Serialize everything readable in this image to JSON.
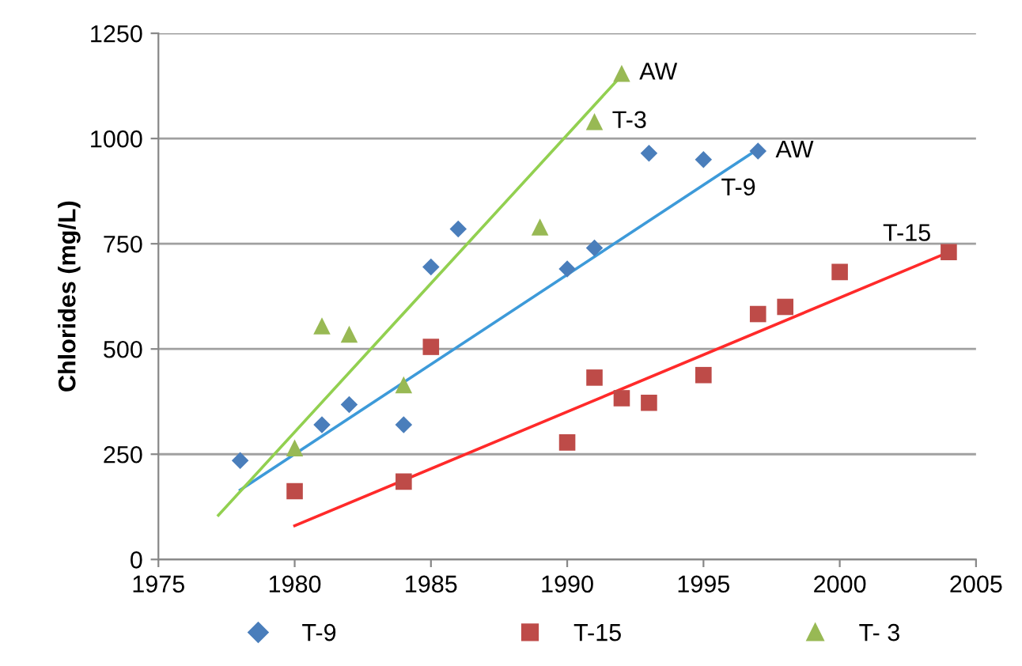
{
  "chart_data": {
    "type": "scatter",
    "ylabel": "Chlorides (mg/L)",
    "xlim": [
      1975,
      2005
    ],
    "xticks": [
      1975,
      1980,
      1985,
      1990,
      1995,
      2000,
      2005
    ],
    "ylim": [
      0,
      1250
    ],
    "yticks": [
      0,
      250,
      500,
      750,
      1000,
      1250
    ],
    "grid": "y",
    "legend": "bottom",
    "series": [
      {
        "name": "T-9",
        "color": "#4a7ebb",
        "marker": "diamond",
        "x": [
          1978,
          1981,
          1982,
          1984,
          1985,
          1986,
          1990,
          1991,
          1993,
          1995,
          1997
        ],
        "values": [
          235,
          320,
          368,
          320,
          695,
          785,
          690,
          740,
          965,
          950,
          970
        ]
      },
      {
        "name": "T-15",
        "color": "#be4b48",
        "marker": "square",
        "x": [
          1980,
          1984,
          1985,
          1990,
          1991,
          1992,
          1993,
          1995,
          1997,
          1998,
          2000,
          2004
        ],
        "values": [
          162,
          185,
          505,
          278,
          432,
          383,
          372,
          438,
          583,
          600,
          683,
          730
        ]
      },
      {
        "name": "T- 3",
        "color": "#98b954",
        "marker": "triangle",
        "x": [
          1980,
          1981,
          1982,
          1984,
          1989,
          1991,
          1992
        ],
        "values": [
          265,
          555,
          535,
          415,
          790,
          1040,
          1155
        ]
      },
      {
        "type": "line",
        "color": "#3d9ad9",
        "marker": "none",
        "x": [
          1978,
          1997
        ],
        "values": [
          165,
          975
        ]
      },
      {
        "type": "line",
        "color": "#ff2a2a",
        "marker": "none",
        "x": [
          1980,
          2004
        ],
        "values": [
          80,
          730
        ]
      },
      {
        "type": "line",
        "color": "#92d050",
        "marker": "none",
        "x": [
          1977.2,
          1992
        ],
        "values": [
          105,
          1150
        ]
      }
    ],
    "annotations": [
      {
        "text": "AW",
        "x": 1992,
        "y": 1155
      },
      {
        "text": "T-3",
        "x": 1991,
        "y": 1040
      },
      {
        "text": "T-9",
        "x": 1995,
        "y": 880
      },
      {
        "text": "AW",
        "x": 1997,
        "y": 970
      },
      {
        "text": "T-15",
        "x": 2004,
        "y": 730
      }
    ]
  }
}
